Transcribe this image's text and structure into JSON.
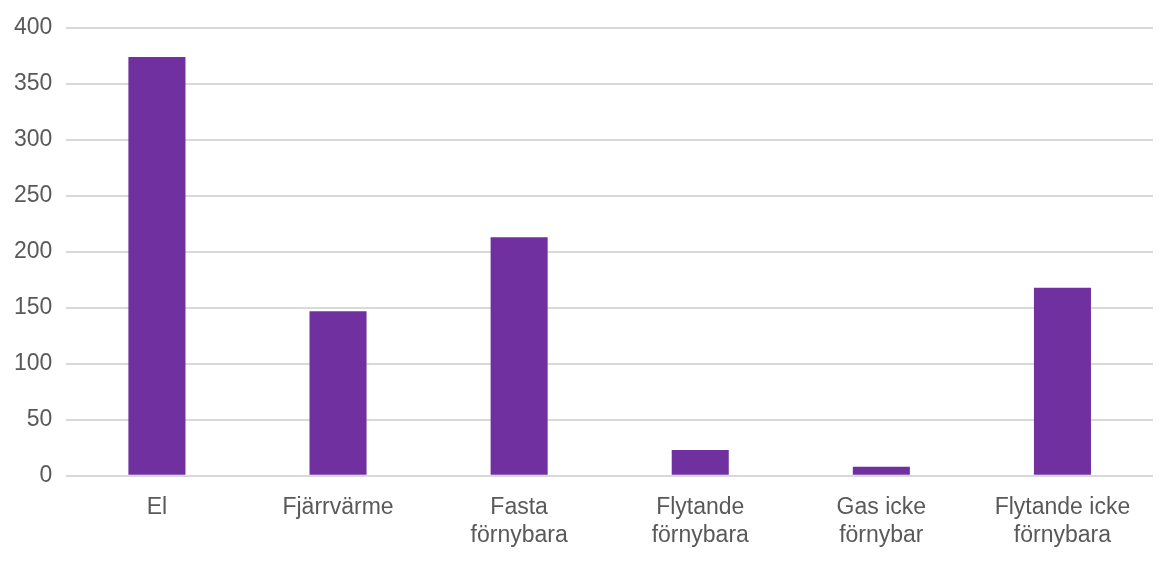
{
  "chart_data": {
    "type": "bar",
    "categories": [
      "El",
      "Fjärrvärme",
      "Fasta förnybara",
      "Flytande förnybara",
      "Gas icke förnybar",
      "Flytande icke förnybara"
    ],
    "values": [
      374,
      147,
      213,
      23,
      8,
      168
    ],
    "color": "#7030a0",
    "ylim": [
      0,
      400
    ],
    "yticks": [
      0,
      50,
      100,
      150,
      200,
      250,
      300,
      350,
      400
    ],
    "grid": "y"
  }
}
